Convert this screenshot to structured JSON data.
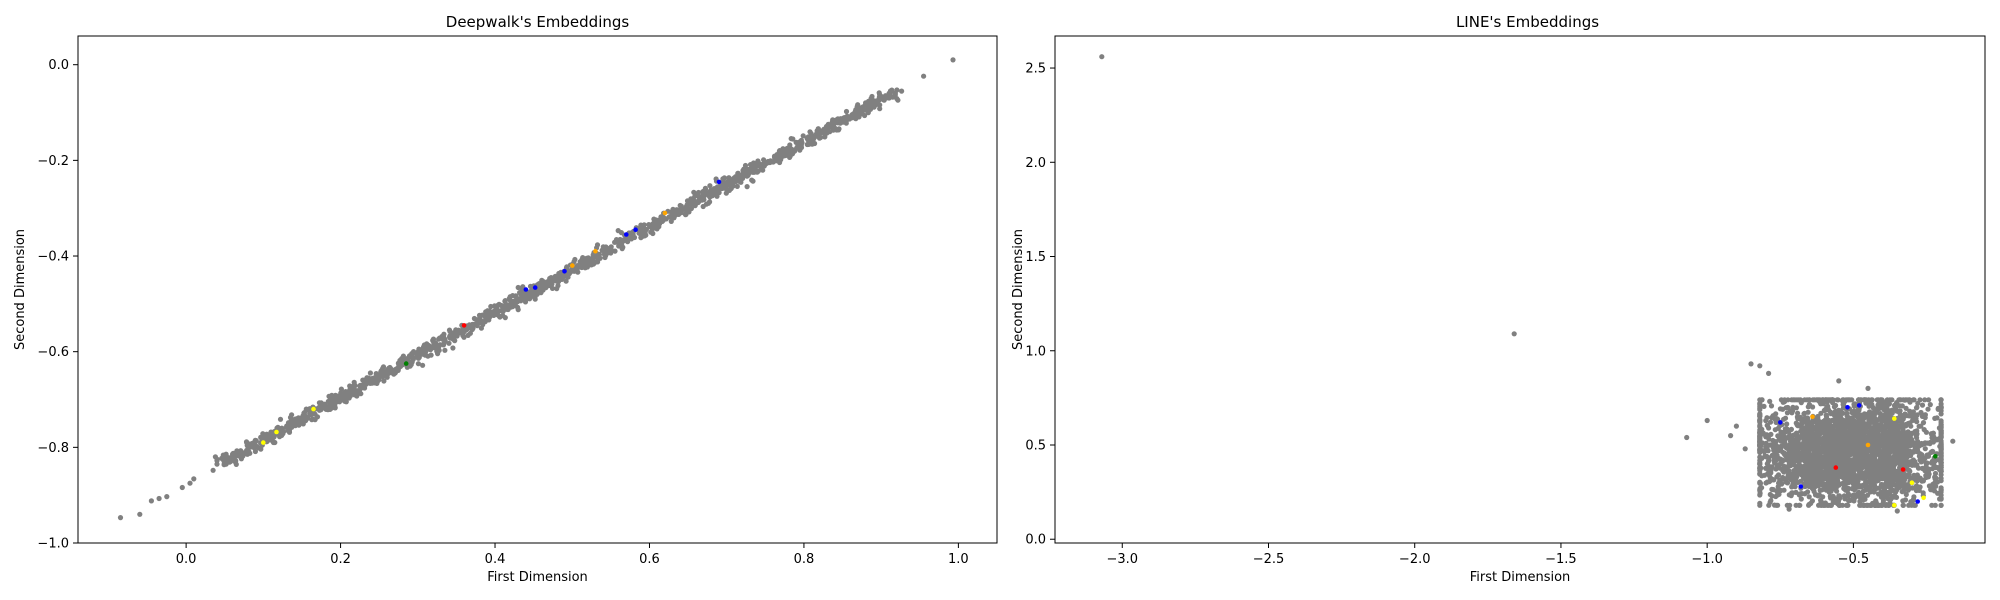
{
  "colors": {
    "background": "#ffffff",
    "axes": "#000000",
    "base_points": "#808080",
    "highlight_palette": [
      "#0000ff",
      "#ffa500",
      "#ffff00",
      "#ff0000",
      "#008000"
    ]
  },
  "chart_data": [
    {
      "type": "scatter",
      "title": "Deepwalk's Embeddings",
      "xlabel": "First Dimension",
      "ylabel": "Second Dimension",
      "xlim": [
        -0.14,
        1.05
      ],
      "ylim": [
        -1.0,
        0.06
      ],
      "xticks": [
        0.0,
        0.2,
        0.4,
        0.6,
        0.8,
        1.0
      ],
      "xtick_labels": [
        "0.0",
        "0.2",
        "0.4",
        "0.6",
        "0.8",
        "1.0"
      ],
      "yticks": [
        -1.0,
        -0.8,
        -0.6,
        -0.4,
        -0.2,
        0.0
      ],
      "ytick_labels": [
        "−1.0",
        "−0.8",
        "−0.6",
        "−0.4",
        "−0.2",
        "0.0"
      ],
      "grid": false,
      "legend": "none",
      "point_color": "#808080",
      "distribution": {
        "kind": "line_band",
        "from": [
          0.05,
          -0.83
        ],
        "to": [
          0.92,
          -0.055
        ],
        "count": 1400,
        "spread": 0.006
      },
      "outliers": [
        [
          -0.085,
          -0.947
        ],
        [
          -0.06,
          -0.94
        ],
        [
          -0.045,
          -0.912
        ],
        [
          -0.035,
          -0.907
        ],
        [
          -0.025,
          -0.903
        ],
        [
          -0.005,
          -0.884
        ],
        [
          0.005,
          -0.875
        ],
        [
          0.01,
          -0.866
        ],
        [
          0.035,
          -0.848
        ],
        [
          0.04,
          -0.835
        ],
        [
          0.955,
          -0.024
        ],
        [
          0.993,
          0.01
        ]
      ],
      "highlight_points": [
        {
          "x": 0.117,
          "y": -0.768,
          "color": "#ffff00"
        },
        {
          "x": 0.1,
          "y": -0.79,
          "color": "#ffff00"
        },
        {
          "x": 0.165,
          "y": -0.72,
          "color": "#ffff00"
        },
        {
          "x": 0.285,
          "y": -0.625,
          "color": "#008000"
        },
        {
          "x": 0.36,
          "y": -0.545,
          "color": "#ff0000"
        },
        {
          "x": 0.44,
          "y": -0.47,
          "color": "#0000ff"
        },
        {
          "x": 0.452,
          "y": -0.466,
          "color": "#0000ff"
        },
        {
          "x": 0.49,
          "y": -0.432,
          "color": "#0000ff"
        },
        {
          "x": 0.5,
          "y": -0.42,
          "color": "#ffa500"
        },
        {
          "x": 0.53,
          "y": -0.39,
          "color": "#ffa500"
        },
        {
          "x": 0.57,
          "y": -0.355,
          "color": "#0000ff"
        },
        {
          "x": 0.582,
          "y": -0.345,
          "color": "#0000ff"
        },
        {
          "x": 0.62,
          "y": -0.31,
          "color": "#ffa500"
        },
        {
          "x": 0.69,
          "y": -0.245,
          "color": "#0000ff"
        }
      ]
    },
    {
      "type": "scatter",
      "title": "LINE's Embeddings",
      "xlabel": "First Dimension",
      "ylabel": "Second Dimension",
      "xlim": [
        -3.23,
        -0.05
      ],
      "ylim": [
        -0.02,
        2.67
      ],
      "xticks": [
        -3.0,
        -2.5,
        -2.0,
        -1.5,
        -1.0,
        -0.5
      ],
      "xtick_labels": [
        "−3.0",
        "−2.5",
        "−2.0",
        "−1.5",
        "−1.0",
        "−0.5"
      ],
      "yticks": [
        0.0,
        0.5,
        1.0,
        1.5,
        2.0,
        2.5
      ],
      "ytick_labels": [
        "0.0",
        "0.5",
        "1.0",
        "1.5",
        "2.0",
        "2.5"
      ],
      "grid": false,
      "legend": "none",
      "point_color": "#808080",
      "distribution": {
        "kind": "cluster",
        "x_range": [
          -0.8,
          -0.22
        ],
        "y_range": [
          0.2,
          0.72
        ],
        "count": 3000
      },
      "outliers": [
        [
          -3.07,
          2.56
        ],
        [
          -1.66,
          1.09
        ],
        [
          -0.85,
          0.93
        ],
        [
          -0.82,
          0.92
        ],
        [
          -0.79,
          0.88
        ],
        [
          -1.0,
          0.63
        ],
        [
          -1.07,
          0.54
        ],
        [
          -0.9,
          0.6
        ],
        [
          -0.92,
          0.55
        ],
        [
          -0.87,
          0.48
        ],
        [
          -0.16,
          0.52
        ],
        [
          -0.2,
          0.6
        ],
        [
          -0.55,
          0.84
        ],
        [
          -0.45,
          0.8
        ],
        [
          -0.35,
          0.15
        ],
        [
          -0.72,
          0.16
        ]
      ],
      "highlight_points": [
        {
          "x": -0.48,
          "y": 0.71,
          "color": "#0000ff"
        },
        {
          "x": -0.52,
          "y": 0.7,
          "color": "#0000ff"
        },
        {
          "x": -0.64,
          "y": 0.65,
          "color": "#ffa500"
        },
        {
          "x": -0.36,
          "y": 0.64,
          "color": "#ffff00"
        },
        {
          "x": -0.75,
          "y": 0.62,
          "color": "#0000ff"
        },
        {
          "x": -0.22,
          "y": 0.44,
          "color": "#008000"
        },
        {
          "x": -0.56,
          "y": 0.38,
          "color": "#ff0000"
        },
        {
          "x": -0.33,
          "y": 0.37,
          "color": "#ff0000"
        },
        {
          "x": -0.3,
          "y": 0.3,
          "color": "#ffff00"
        },
        {
          "x": -0.26,
          "y": 0.22,
          "color": "#ffff00"
        },
        {
          "x": -0.36,
          "y": 0.18,
          "color": "#ffff00"
        },
        {
          "x": -0.28,
          "y": 0.2,
          "color": "#0000ff"
        },
        {
          "x": -0.68,
          "y": 0.28,
          "color": "#0000ff"
        },
        {
          "x": -0.45,
          "y": 0.5,
          "color": "#ffa500"
        }
      ]
    }
  ]
}
